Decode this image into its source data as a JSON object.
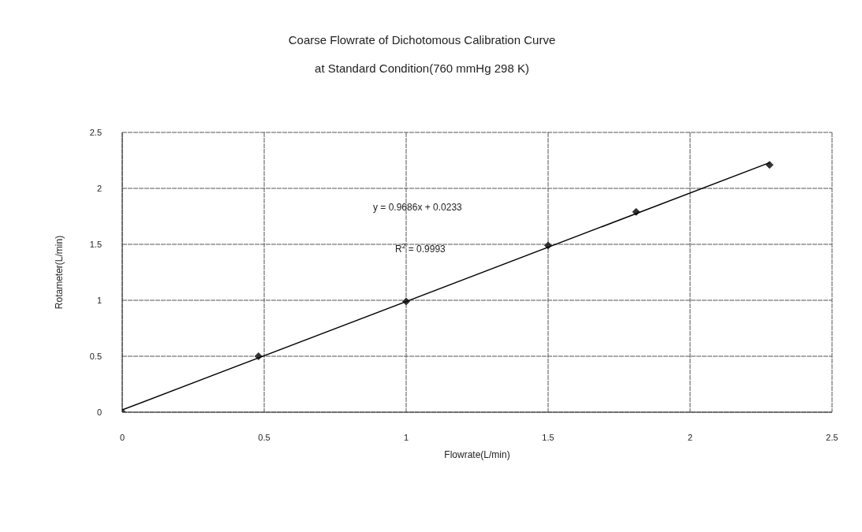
{
  "chart_data": {
    "type": "scatter",
    "title": "Coarse Flowrate of Dichotomous Calibration Curve",
    "subtitle": "at Standard Condition(760 mmHg 298 K)",
    "xlabel": "Flowrate(L/min)",
    "ylabel": "Rotameter(L/min)",
    "series": [
      {
        "color": "#333333",
        "marker": "diamond",
        "x": [
          0,
          0.48,
          1.0,
          1.5,
          1.81,
          2.28
        ],
        "values": [
          0,
          0.5,
          0.99,
          1.49,
          1.79,
          2.21
        ]
      },
      {
        "type": "line",
        "color": "#000000",
        "marker": "none",
        "x": [
          0,
          2.28
        ],
        "values": [
          0.02,
          2.23
        ]
      }
    ],
    "xlim": [
      0,
      2.5
    ],
    "xticks": [
      0,
      0.5,
      1,
      1.5,
      2,
      2.5
    ],
    "ylim": [
      0,
      2.5
    ],
    "yticks": [
      0,
      0.5,
      1,
      1.5,
      2,
      2.5
    ],
    "grid": true,
    "legend": false,
    "annotations": [
      "y = 0.9686x + 0.0233",
      "R$^{2}$ = 0.9993"
    ]
  }
}
